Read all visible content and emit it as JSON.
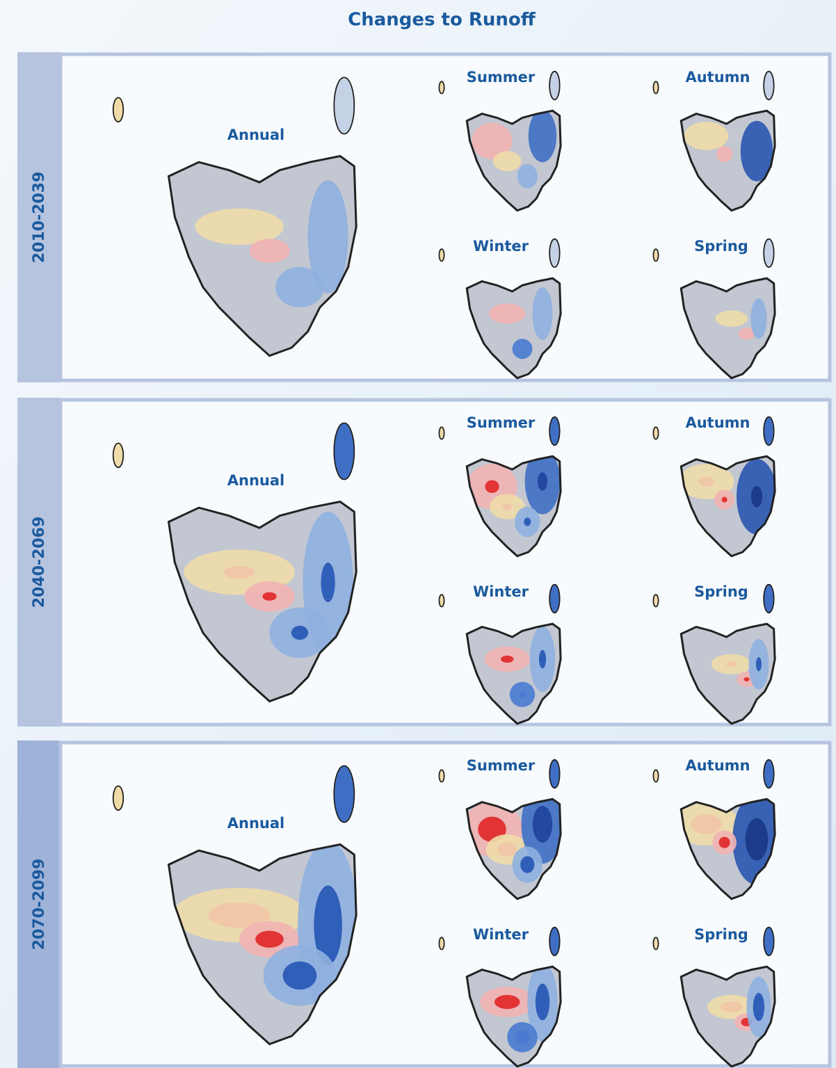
{
  "title": "Changes to Runoff",
  "panels": [
    {
      "period": "2010-2039",
      "maps": {
        "annual": "Annual",
        "summer": "Summer",
        "autumn": "Autumn",
        "winter": "Winter",
        "spring": "Spring"
      }
    },
    {
      "period": "2040-2069",
      "maps": {
        "annual": "Annual",
        "summer": "Summer",
        "autumn": "Autumn",
        "winter": "Winter",
        "spring": "Spring"
      }
    },
    {
      "period": "2070-2099",
      "maps": {
        "annual": "Annual",
        "summer": "Summer",
        "autumn": "Autumn",
        "winter": "Winter",
        "spring": "Spring"
      }
    }
  ]
}
